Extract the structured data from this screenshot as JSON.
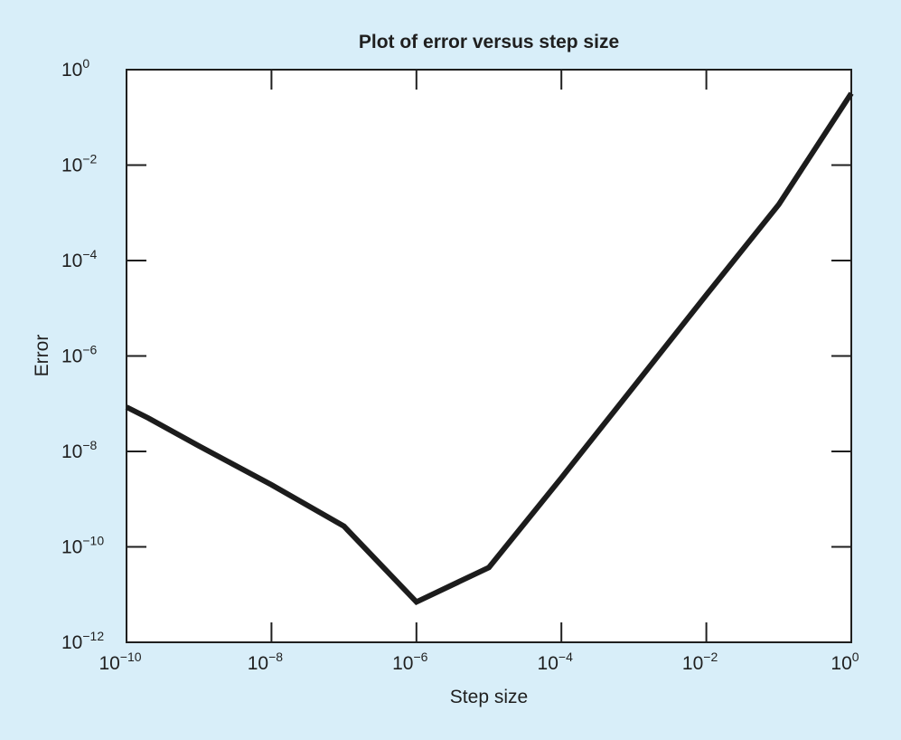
{
  "chart_data": {
    "type": "line",
    "title": "Plot of error versus step size",
    "xlabel": "Step size",
    "ylabel": "Error",
    "x_scale": "log10",
    "y_scale": "log10",
    "xlim": [
      1e-10,
      1
    ],
    "ylim": [
      1e-12,
      1
    ],
    "grid": false,
    "x_ticks": [
      {
        "base": "10",
        "exp": "−10",
        "value": 1e-10
      },
      {
        "base": "10",
        "exp": "−8",
        "value": 1e-08
      },
      {
        "base": "10",
        "exp": "−6",
        "value": 1e-06
      },
      {
        "base": "10",
        "exp": "−4",
        "value": 0.0001
      },
      {
        "base": "10",
        "exp": "−2",
        "value": 0.01
      },
      {
        "base": "10",
        "exp": "0",
        "value": 1
      }
    ],
    "y_ticks": [
      {
        "base": "10",
        "exp": "0",
        "value": 1
      },
      {
        "base": "10",
        "exp": "−2",
        "value": 0.01
      },
      {
        "base": "10",
        "exp": "−4",
        "value": 0.0001
      },
      {
        "base": "10",
        "exp": "−6",
        "value": 1e-06
      },
      {
        "base": "10",
        "exp": "−8",
        "value": 1e-08
      },
      {
        "base": "10",
        "exp": "−10",
        "value": 1e-10
      },
      {
        "base": "10",
        "exp": "−12",
        "value": 1e-12
      }
    ],
    "series": [
      {
        "color": "#1c1c1c",
        "points": [
          {
            "x": 1e-10,
            "y": 8.5e-08
          },
          {
            "x": 2e-10,
            "y": 5e-08
          },
          {
            "x": 1e-09,
            "y": 1.3e-08
          },
          {
            "x": 1e-08,
            "y": 2e-09
          },
          {
            "x": 1e-07,
            "y": 2.7e-10
          },
          {
            "x": 1e-06,
            "y": 7e-12
          },
          {
            "x": 1e-05,
            "y": 3.7e-11
          },
          {
            "x": 0.0001,
            "y": 2.8e-09
          },
          {
            "x": 0.001,
            "y": 2.3e-07
          },
          {
            "x": 0.01,
            "y": 1.9e-05
          },
          {
            "x": 0.1,
            "y": 0.0015
          },
          {
            "x": 1,
            "y": 0.32
          }
        ]
      }
    ]
  }
}
